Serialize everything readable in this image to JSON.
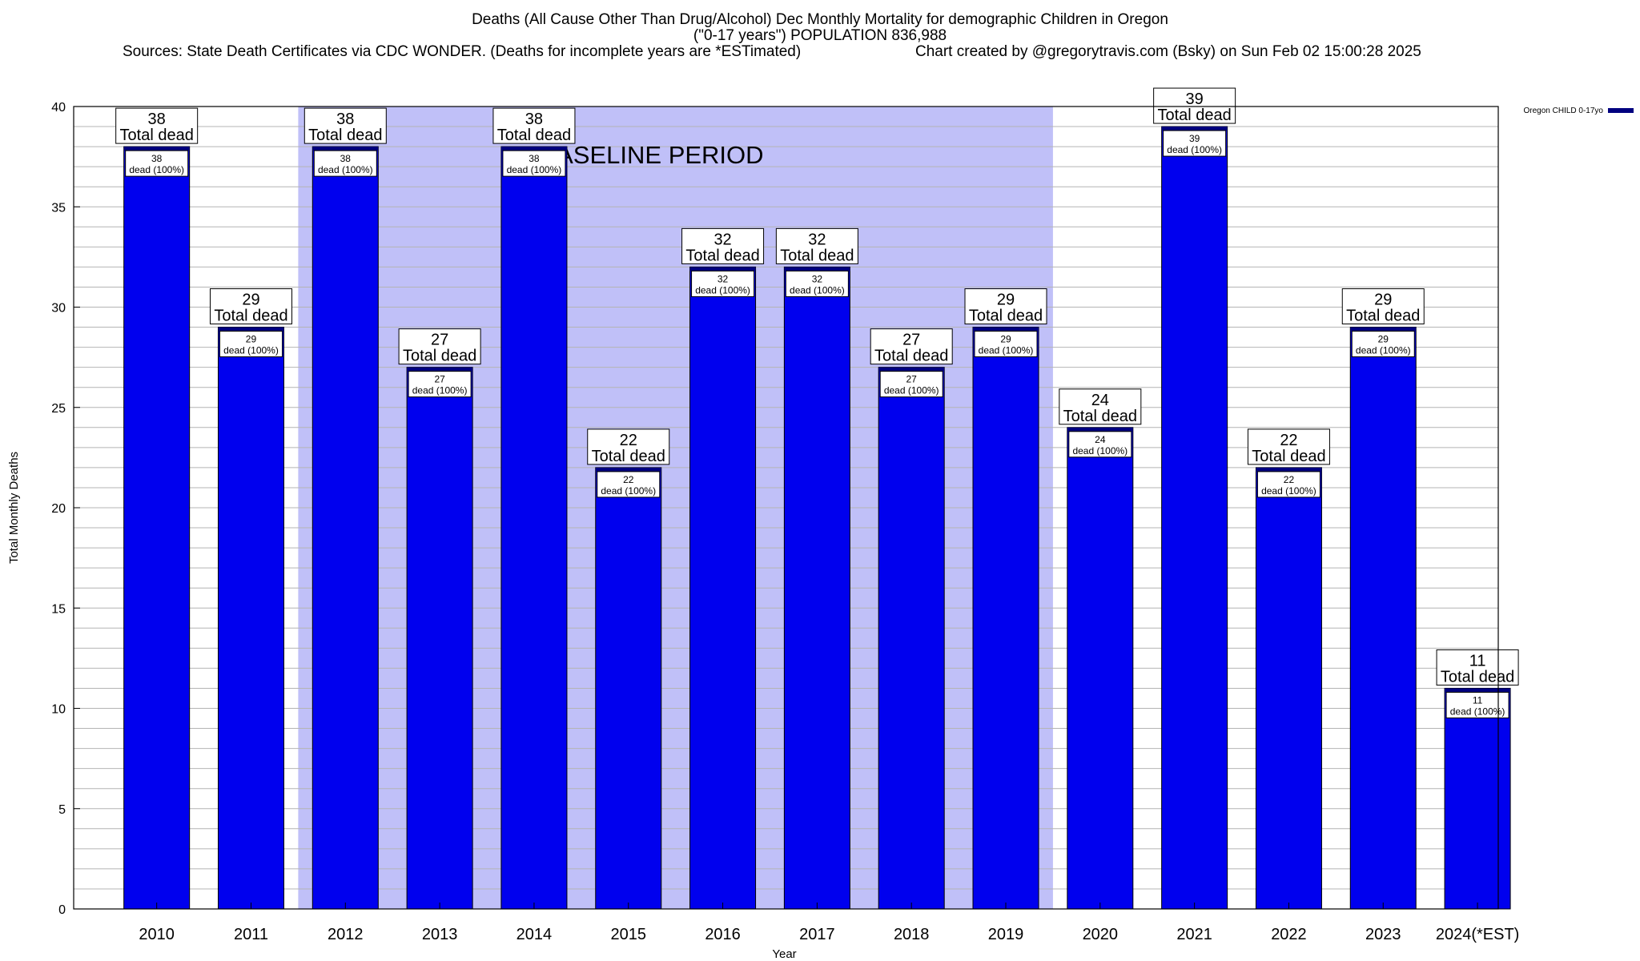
{
  "header": {
    "title_line1": "Deaths (All Cause Other Than Drug/Alcohol) Dec Monthly Mortality for demographic Children in Oregon",
    "title_line2": "(\"0-17 years\") POPULATION 836,988",
    "sources": "Sources: State Death Certificates via CDC WONDER. (Deaths for incomplete years are *ESTimated)",
    "credit": "Chart created by @gregorytravis.com (Bsky) on Sun Feb 02 15:00:28 2025"
  },
  "colors": {
    "bar": "#0000ee",
    "bar_top": "#00007f",
    "baseline_band": "#c0c0f8",
    "grid": "#b4b4b4"
  },
  "chart_data": {
    "type": "bar",
    "xlabel": "Year",
    "ylabel": "Total Monthly Deaths",
    "ylim": [
      0,
      40
    ],
    "yticks": [
      0,
      5,
      10,
      15,
      20,
      25,
      30,
      35,
      40
    ],
    "grid": true,
    "legend_position": "top-right",
    "categories": [
      "2010",
      "2011",
      "2012",
      "2013",
      "2014",
      "2015",
      "2016",
      "2017",
      "2018",
      "2019",
      "2020",
      "2021",
      "2022",
      "2023",
      "2024(*EST)"
    ],
    "series": [
      {
        "name": "Oregon CHILD 0-17yo",
        "values": [
          38,
          29,
          38,
          27,
          38,
          22,
          32,
          32,
          27,
          29,
          24,
          39,
          22,
          29,
          11
        ]
      }
    ],
    "total_label": "Total dead",
    "inner_label": "dead (100%)",
    "baseline": {
      "label": "BASELINE PERIOD",
      "from": "2012",
      "to": "2019"
    }
  }
}
